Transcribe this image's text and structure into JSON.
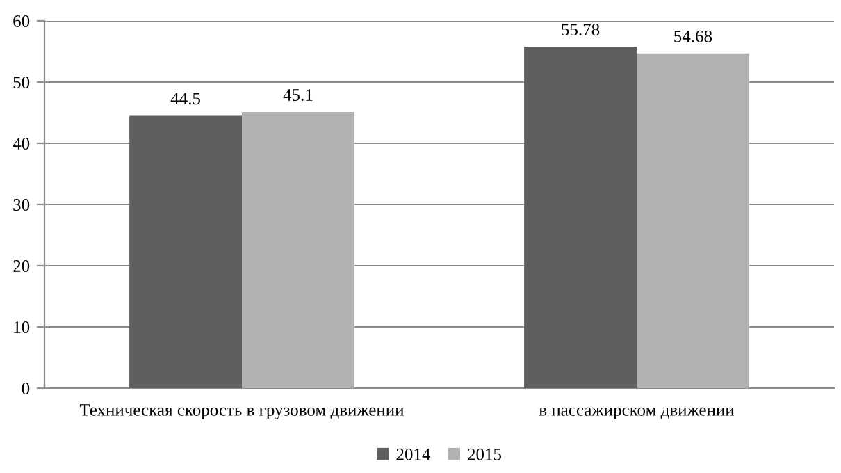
{
  "chart_data": {
    "type": "bar",
    "categories": [
      "Техническая скорость в грузовом движении",
      "в пассажирском движении"
    ],
    "series": [
      {
        "name": "2014",
        "color": "#5f5f5f",
        "values": [
          44.5,
          55.78
        ]
      },
      {
        "name": "2015",
        "color": "#b2b2b2",
        "values": [
          45.1,
          54.68
        ]
      }
    ],
    "ylim": [
      0,
      60
    ],
    "yticks": [
      0,
      10,
      20,
      30,
      40,
      50,
      60
    ],
    "grid": "y",
    "legend": "bottom",
    "data_labels": true
  }
}
